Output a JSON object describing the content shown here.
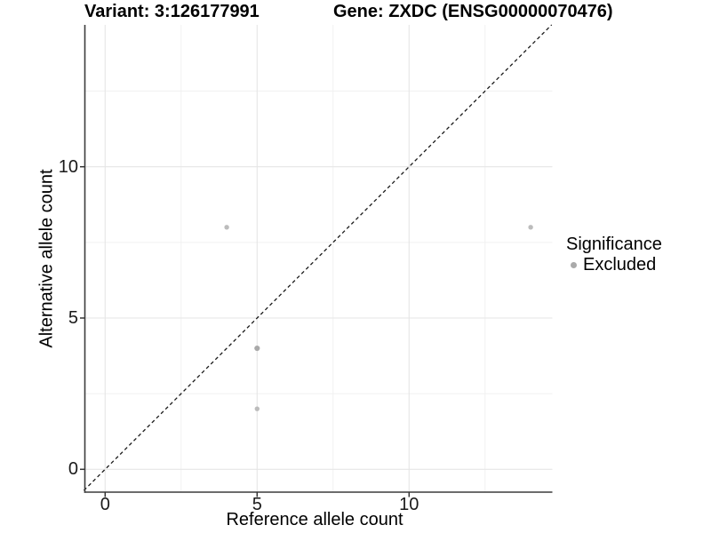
{
  "titles": {
    "variant": "Variant: 3:126177991",
    "gene": "Gene: ZXDC (ENSG00000070476)"
  },
  "chart_data": {
    "type": "scatter",
    "xlabel": "Reference allele count",
    "ylabel": "Alternative allele count",
    "xlim": [
      -0.7,
      14.7
    ],
    "ylim": [
      -0.75,
      14.7
    ],
    "x_ticks": [
      0,
      5,
      10
    ],
    "y_ticks": [
      0,
      5,
      10
    ],
    "x_minor": [
      2.5,
      7.5,
      12.5
    ],
    "y_minor": [
      2.5,
      7.5,
      12.5
    ],
    "grid": true,
    "points": [
      {
        "x": 4,
        "y": 8,
        "r": 2.7,
        "color": "#bcbcbc"
      },
      {
        "x": 5,
        "y": 4,
        "r": 3.1,
        "color": "#a9a9a9"
      },
      {
        "x": 5,
        "y": 2,
        "r": 2.7,
        "color": "#bcbcbc"
      },
      {
        "x": 14,
        "y": 8,
        "r": 2.7,
        "color": "#bcbcbc"
      }
    ],
    "identity_line": {
      "style": "dashed",
      "from": [
        -0.7,
        -0.7
      ],
      "to": [
        14.69,
        14.69
      ]
    },
    "legend": {
      "title": "Significance",
      "position": "right",
      "entries": [
        {
          "label": "Excluded",
          "color": "#aaaaaa"
        }
      ]
    },
    "colors": {
      "grid_major": "#e6e6e6",
      "grid_minor": "#f1f1f1",
      "axis_line": "#3c3c3c",
      "tick_mark": "#343434",
      "dashed_line": "#1a1a1a",
      "background": "#ffffff"
    }
  }
}
